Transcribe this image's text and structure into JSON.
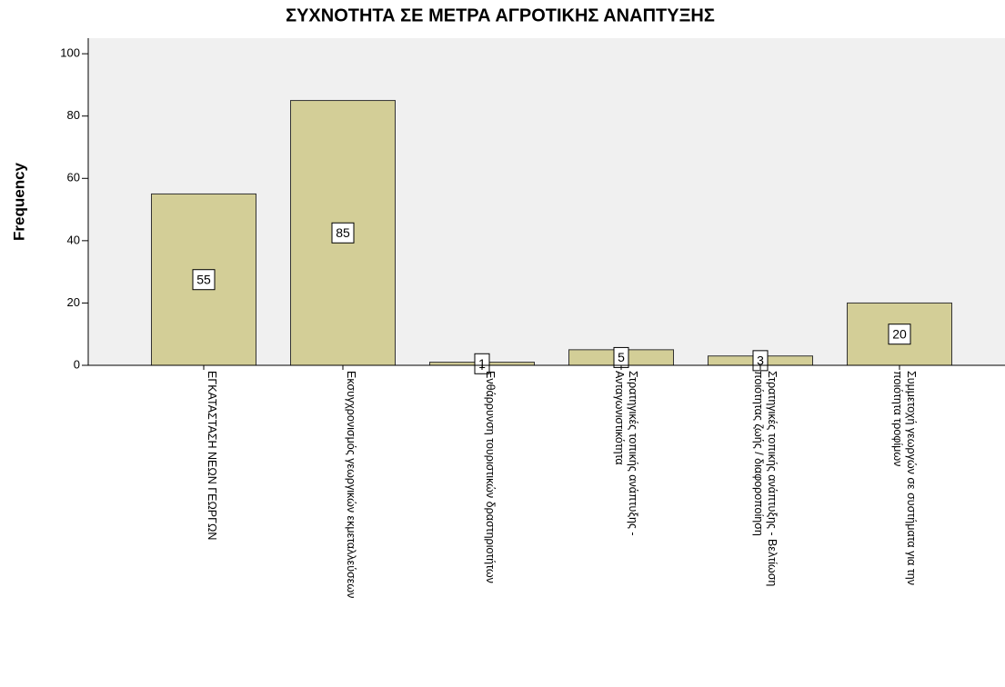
{
  "chart_data": {
    "type": "bar",
    "title": "ΣΥΧΝΟΤΗΤΑ  ΣΕ ΜΕΤΡΑ ΑΓΡΟΤΙΚΗΣ ΑΝΑΠΤΥΞΗΣ",
    "y_label": "Frequency",
    "categories": [
      [
        "ΕΓΚΑΤΑΣΤΑΣΗ ΝΕΩΝ ΓΕΩΡΓΩΝ"
      ],
      [
        "Εκσυγχρονισμός γεωργικών εκμεταλλεύσεων"
      ],
      [
        "Ενθάρρυνση τουριστικών δραστηριοτήτων"
      ],
      [
        "Στρατηγικές τοπικής ανάπτυξης -",
        "Ανταγωνιστικότητα"
      ],
      [
        "Στρατηγικές τοπικής ανάπτυξης - Βελτίωση",
        "ποιότητας ζωής / διαφοροποίηση"
      ],
      [
        "Συμμετοχή γεωργών σε συστήματα για την",
        "ποιότητα τροφίμων"
      ]
    ],
    "values": [
      55,
      85,
      1,
      5,
      3,
      20
    ],
    "color": "#d3ce97",
    "ylim": [
      0,
      105
    ],
    "yticks": [
      0,
      20,
      40,
      60,
      80,
      100
    ]
  }
}
